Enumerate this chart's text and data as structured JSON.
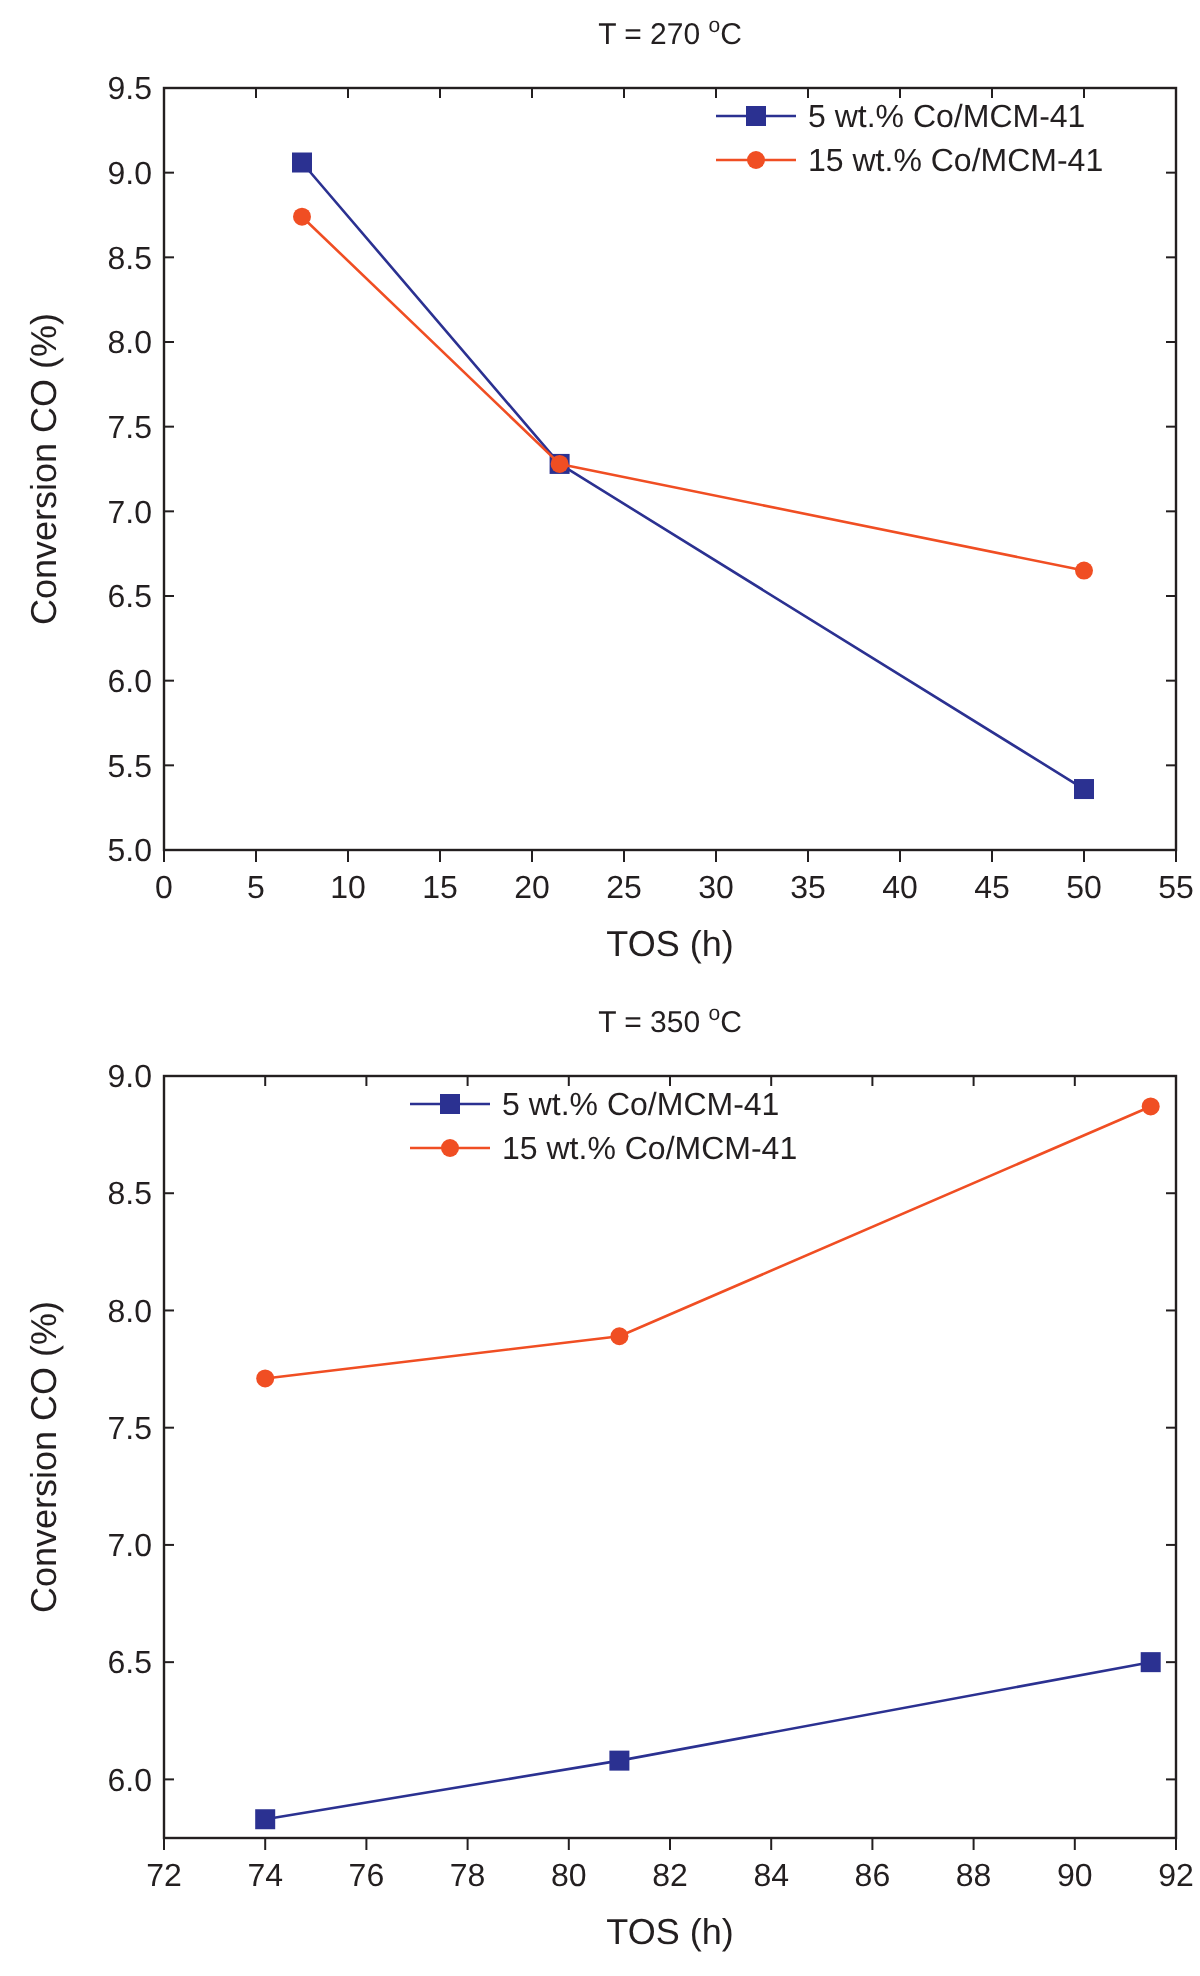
{
  "chart_data": [
    {
      "type": "line",
      "title": "T = 270 $^{o}$C",
      "xlabel": "TOS (h)",
      "ylabel": "Conversion CO (%)",
      "xlim": [
        0,
        55
      ],
      "xticks": [
        0,
        5,
        10,
        15,
        20,
        25,
        30,
        35,
        40,
        45,
        50,
        55
      ],
      "ylim": [
        5.0,
        9.5
      ],
      "yticks": [
        {
          "value": 5.0,
          "label": "5.0"
        },
        {
          "value": 5.5,
          "label": "5.5"
        },
        {
          "value": 6.0,
          "label": "6.0"
        },
        {
          "value": 6.5,
          "label": "6.5"
        },
        {
          "value": 7.0,
          "label": "7.0"
        },
        {
          "value": 7.5,
          "label": "7.5"
        },
        {
          "value": 8.0,
          "label": "8.0"
        },
        {
          "value": 8.5,
          "label": "8.5"
        },
        {
          "value": 9.0,
          "label": "9.0"
        },
        {
          "value": 9.5,
          "label": "9.5"
        }
      ],
      "grid": false,
      "legend": "top right",
      "x": [
        7.5,
        21.5,
        50
      ],
      "series": [
        {
          "name": "5 wt.% Co/MCM-41",
          "color": "#2b3191",
          "marker": "square",
          "values": [
            9.06,
            7.28,
            5.36
          ]
        },
        {
          "name": "15 wt.% Co/MCM-41",
          "color": "#f04e23",
          "marker": "circle",
          "values": [
            8.74,
            7.28,
            6.65
          ]
        }
      ]
    },
    {
      "type": "line",
      "title": "T = 350 $^{o}$C",
      "xlabel": "TOS (h)",
      "ylabel": "Conversion CO (%)",
      "xlim": [
        72,
        92
      ],
      "xticks": [
        72,
        74,
        76,
        78,
        80,
        82,
        84,
        86,
        88,
        90,
        92
      ],
      "ylim": [
        5.75,
        9.0
      ],
      "yticks": [
        {
          "value": 6.0,
          "label": "6.0"
        },
        {
          "value": 6.5,
          "label": "6.5"
        },
        {
          "value": 7.0,
          "label": "7.0"
        },
        {
          "value": 7.5,
          "label": "7.5"
        },
        {
          "value": 8.0,
          "label": "8.0"
        },
        {
          "value": 8.5,
          "label": "8.5"
        },
        {
          "value": 9.0,
          "label": "9.0"
        }
      ],
      "grid": false,
      "legend": "top",
      "x": [
        74,
        81,
        91.5
      ],
      "series": [
        {
          "name": "5 wt.% Co/MCM-41",
          "color": "#2b3191",
          "marker": "square",
          "values": [
            5.83,
            6.08,
            6.5
          ]
        },
        {
          "name": "15 wt.% Co/MCM-41",
          "color": "#f04e23",
          "marker": "circle",
          "values": [
            7.71,
            7.89,
            8.87
          ]
        }
      ]
    }
  ]
}
